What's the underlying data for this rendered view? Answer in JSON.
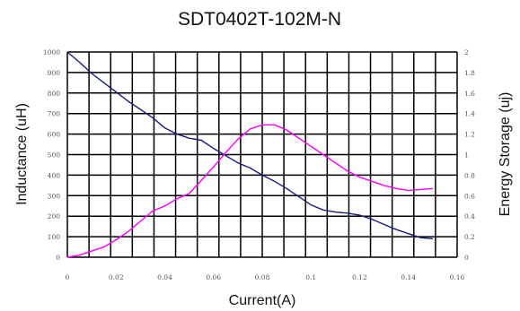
{
  "chart_data": {
    "type": "line",
    "title": "SDT0402T-102M-N",
    "xlabel": "Current(A)",
    "ylabel": "Inductance (uH)",
    "y2label": "Energy Storage (uj)",
    "xlim": [
      0,
      0.16
    ],
    "ylim": [
      0,
      1000
    ],
    "y2lim": [
      0,
      2
    ],
    "grid": true,
    "x_ticks": [
      "0",
      "0.02",
      "0.04",
      "0.06",
      "0.08",
      "0.1",
      "0.12",
      "0.14",
      "0.16"
    ],
    "y_ticks": [
      "0",
      "100",
      "200",
      "300",
      "400",
      "500",
      "600",
      "700",
      "800",
      "900",
      "1000"
    ],
    "y2_ticks": [
      "0",
      "0.2",
      "0.4",
      "0.6",
      "0.8",
      "1",
      "1.2",
      "1.4",
      "1.6",
      "1.8",
      "2"
    ],
    "series": [
      {
        "axis": "left",
        "color": "#1a1a7a",
        "x": [
          0,
          0.005,
          0.01,
          0.015,
          0.02,
          0.025,
          0.03,
          0.035,
          0.04,
          0.045,
          0.05,
          0.055,
          0.06,
          0.065,
          0.07,
          0.075,
          0.08,
          0.085,
          0.09,
          0.095,
          0.1,
          0.105,
          0.11,
          0.115,
          0.12,
          0.125,
          0.13,
          0.135,
          0.14,
          0.145,
          0.15
        ],
        "values": [
          1000,
          950,
          895,
          850,
          805,
          760,
          720,
          680,
          630,
          600,
          580,
          570,
          530,
          495,
          460,
          435,
          400,
          370,
          335,
          295,
          255,
          230,
          220,
          215,
          205,
          185,
          160,
          135,
          115,
          95,
          90
        ]
      },
      {
        "axis": "right",
        "color": "#ff00ff",
        "x": [
          0,
          0.005,
          0.01,
          0.015,
          0.02,
          0.025,
          0.03,
          0.035,
          0.04,
          0.045,
          0.05,
          0.055,
          0.06,
          0.065,
          0.07,
          0.075,
          0.08,
          0.085,
          0.09,
          0.095,
          0.1,
          0.105,
          0.11,
          0.115,
          0.12,
          0.125,
          0.13,
          0.135,
          0.14,
          0.145,
          0.15
        ],
        "values": [
          0,
          0.02,
          0.06,
          0.1,
          0.17,
          0.25,
          0.35,
          0.45,
          0.5,
          0.57,
          0.62,
          0.75,
          0.88,
          1.02,
          1.15,
          1.25,
          1.29,
          1.29,
          1.24,
          1.16,
          1.08,
          1.0,
          0.92,
          0.84,
          0.78,
          0.74,
          0.7,
          0.67,
          0.65,
          0.66,
          0.67
        ]
      }
    ]
  }
}
